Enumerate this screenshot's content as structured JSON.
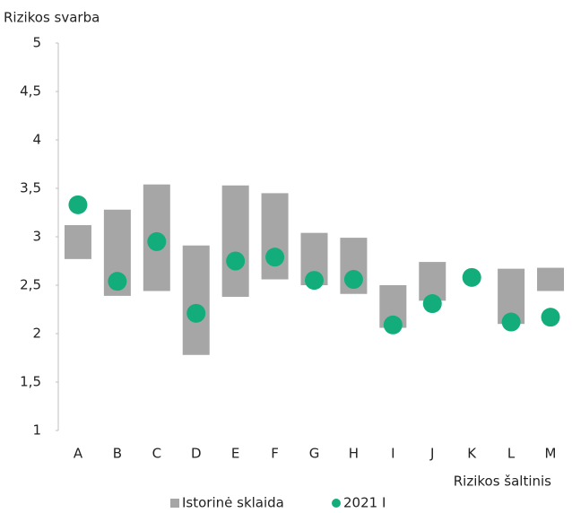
{
  "chart_data": {
    "type": "range",
    "y_axis_label": "Rizikos svarba",
    "x_axis_label": "Rizikos šaltinis",
    "categories": [
      "A",
      "B",
      "C",
      "D",
      "E",
      "F",
      "G",
      "H",
      "I",
      "J",
      "K",
      "L",
      "M"
    ],
    "series": [
      {
        "name": "Istorinė sklaida",
        "color": "#a6a6a6",
        "low": [
          2.77,
          2.39,
          2.44,
          1.78,
          2.38,
          2.56,
          2.5,
          2.41,
          2.06,
          2.34,
          null,
          2.1,
          2.44
        ],
        "high": [
          3.12,
          3.28,
          3.54,
          2.91,
          3.53,
          3.45,
          3.04,
          2.99,
          2.5,
          2.74,
          null,
          2.67,
          2.68
        ]
      },
      {
        "name": "2021 I",
        "color": "#12ad7b",
        "values": [
          3.33,
          2.54,
          2.95,
          2.21,
          2.75,
          2.79,
          2.55,
          2.56,
          2.09,
          2.31,
          2.58,
          2.12,
          2.17
        ]
      }
    ],
    "ylim": [
      1,
      5
    ],
    "yticks": [
      1,
      {
        "value": 1.5,
        "label": "1,5"
      },
      2,
      {
        "value": 2.5,
        "label": "2,5"
      },
      3,
      {
        "value": 3.5,
        "label": "3,5"
      },
      4,
      {
        "value": 4.5,
        "label": "4,5"
      },
      5
    ],
    "legend": "bottom"
  }
}
